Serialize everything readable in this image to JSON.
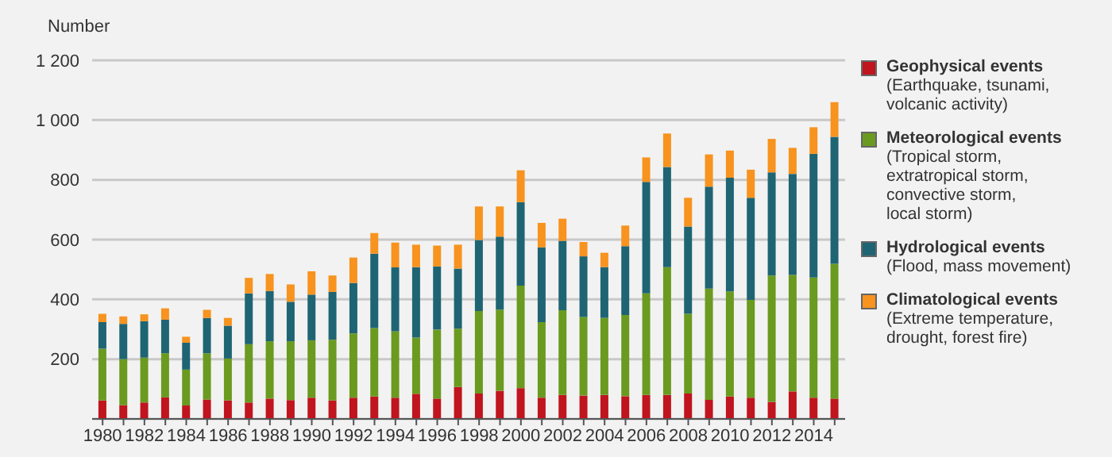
{
  "chart_data": {
    "type": "bar",
    "stacked": true,
    "ylabel": "Number",
    "categories": [
      "1980",
      null,
      "1982",
      null,
      "1984",
      null,
      "1986",
      null,
      "1988",
      null,
      "1990",
      null,
      "1992",
      null,
      "1994",
      null,
      "1996",
      null,
      "1998",
      null,
      "2000",
      null,
      "2002",
      null,
      "2004",
      null,
      "2006",
      null,
      "2008",
      null,
      "2010",
      null,
      "2012",
      null,
      "2014",
      null
    ],
    "series": [
      {
        "name": "Geophysical events\n(Earthquake, tsunami,\nvolcanic activity)",
        "color": "#c0141e",
        "values": [
          62,
          46,
          55,
          72,
          45,
          65,
          62,
          55,
          68,
          63,
          71,
          62,
          71,
          75,
          71,
          84,
          68,
          107,
          85,
          94,
          103,
          71,
          80,
          78,
          80,
          76,
          80,
          80,
          85,
          64,
          75,
          71,
          57,
          92,
          71,
          68
        ]
      },
      {
        "name": "Meteorological events\n(Tropical storm,\nextratropical storm,\nconvective storm,\nlocal storm)",
        "color": "#6a9a1f",
        "values": [
          173,
          154,
          150,
          148,
          120,
          155,
          140,
          195,
          192,
          197,
          192,
          203,
          215,
          229,
          222,
          188,
          231,
          195,
          276,
          272,
          343,
          253,
          284,
          263,
          258,
          272,
          340,
          428,
          267,
          372,
          352,
          327,
          423,
          390,
          402,
          451
        ]
      },
      {
        "name": "Hydrological events\n(Flood, mass movement)",
        "color": "#1f6473",
        "values": [
          89,
          118,
          122,
          112,
          90,
          118,
          110,
          170,
          168,
          132,
          153,
          160,
          169,
          249,
          214,
          236,
          211,
          201,
          238,
          244,
          279,
          250,
          232,
          203,
          170,
          230,
          373,
          335,
          292,
          341,
          380,
          342,
          345,
          338,
          414,
          425
        ]
      },
      {
        "name": "Climatological events\n(Extreme temperature,\ndrought, forest fire)",
        "color": "#f7931e",
        "values": [
          28,
          25,
          23,
          38,
          20,
          27,
          26,
          52,
          57,
          58,
          78,
          55,
          85,
          69,
          83,
          75,
          70,
          80,
          112,
          101,
          107,
          82,
          74,
          48,
          48,
          69,
          82,
          112,
          96,
          108,
          91,
          94,
          112,
          87,
          89,
          116
        ]
      }
    ],
    "ylim": [
      0,
      1200
    ],
    "yticks": [
      200,
      400,
      600,
      800,
      {
        "value": 1000,
        "label": "1 000"
      },
      {
        "value": 1200,
        "label": "1 200"
      }
    ],
    "grid": "y",
    "legend": "right"
  }
}
